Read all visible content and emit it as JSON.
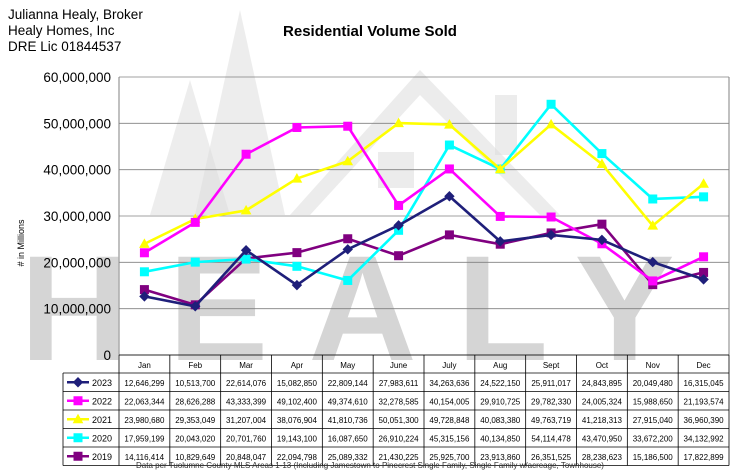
{
  "header": {
    "lines": [
      "Julianna Healy, Broker",
      "Healy Homes, Inc",
      "DRE Lic 01844537"
    ]
  },
  "watermark": {
    "text": "HEALY",
    "color": "#c8c8c8"
  },
  "colors": {
    "grid": "#808080",
    "axis": "#808080",
    "plot_bg": "#ffffff"
  },
  "chart_data": {
    "type": "line",
    "title": "Residential Volume Sold",
    "ylabel": "# in Millions",
    "xlabel": "",
    "ylim": [
      0,
      60000000
    ],
    "yticks": [
      0,
      10000000,
      20000000,
      30000000,
      40000000,
      50000000,
      60000000
    ],
    "ytick_labels": [
      "0",
      "10,000,000",
      "20,000,000",
      "30,000,000",
      "40,000,000",
      "50,000,000",
      "60,000,000"
    ],
    "grid": true,
    "legend": "data-table",
    "categories": [
      "Jan",
      "Feb",
      "Mar",
      "Apr",
      "May",
      "June",
      "July",
      "Aug",
      "Sept",
      "Oct",
      "Nov",
      "Dec"
    ],
    "series": [
      {
        "name": "2023",
        "color": "#1f1f7a",
        "marker": "diamond",
        "values": [
          12646299,
          10513700,
          22614076,
          15082850,
          22809144,
          27983611,
          34263636,
          24522150,
          25911017,
          24843895,
          20049480,
          16315045
        ],
        "labels": [
          "12,646,299",
          "10,513,700",
          "22,614,076",
          "15,082,850",
          "22,809,144",
          "27,983,611",
          "34,263,636",
          "24,522,150",
          "25,911,017",
          "24,843,895",
          "20,049,480",
          "16,315,045"
        ]
      },
      {
        "name": "2022",
        "color": "#ff00ff",
        "marker": "square",
        "values": [
          22063344,
          28626288,
          43333399,
          49102400,
          49374610,
          32278585,
          40154005,
          29910725,
          29782330,
          24005324,
          15988650,
          21193574
        ],
        "labels": [
          "22,063,344",
          "28,626,288",
          "43,333,399",
          "49,102,400",
          "49,374,610",
          "32,278,585",
          "40,154,005",
          "29,910,725",
          "29,782,330",
          "24,005,324",
          "15,988,650",
          "21,193,574"
        ]
      },
      {
        "name": "2021",
        "color": "#ffff00",
        "marker": "triangle",
        "values": [
          23980680,
          29353049,
          31207004,
          38076904,
          41810736,
          50051300,
          49728848,
          40083380,
          49763719,
          41218313,
          27915040,
          36960390
        ],
        "labels": [
          "23,980,680",
          "29,353,049",
          "31,207,004",
          "38,076,904",
          "41,810,736",
          "50,051,300",
          "49,728,848",
          "40,083,380",
          "49,763,719",
          "41,218,313",
          "27,915,040",
          "36,960,390"
        ]
      },
      {
        "name": "2020",
        "color": "#00ffff",
        "marker": "square",
        "values": [
          17959199,
          20043020,
          20701760,
          19143100,
          16087650,
          26910224,
          45315156,
          40134850,
          54114478,
          43470950,
          33672200,
          34132992
        ],
        "labels": [
          "17,959,199",
          "20,043,020",
          "20,701,760",
          "19,143,100",
          "16,087,650",
          "26,910,224",
          "45,315,156",
          "40,134,850",
          "54,114,478",
          "43,470,950",
          "33,672,200",
          "34,132,992"
        ]
      },
      {
        "name": "2019",
        "color": "#800080",
        "marker": "square",
        "values": [
          14116414,
          10829649,
          20848047,
          22094798,
          25089332,
          21430225,
          25925700,
          23913860,
          26351525,
          28238623,
          15186500,
          17822899
        ],
        "labels": [
          "14,116,414",
          "10,829,649",
          "20,848,047",
          "22,094,798",
          "25,089,332",
          "21,430,225",
          "25,925,700",
          "23,913,860",
          "26,351,525",
          "28,238,623",
          "15,186,500",
          "17,822,899"
        ]
      }
    ],
    "footnote": "Data per Tuolumne County MLS Areas 1-13 (Including Jamestown to Pinecrest Single Family, Single Family w/acreage, Townhouse)"
  }
}
